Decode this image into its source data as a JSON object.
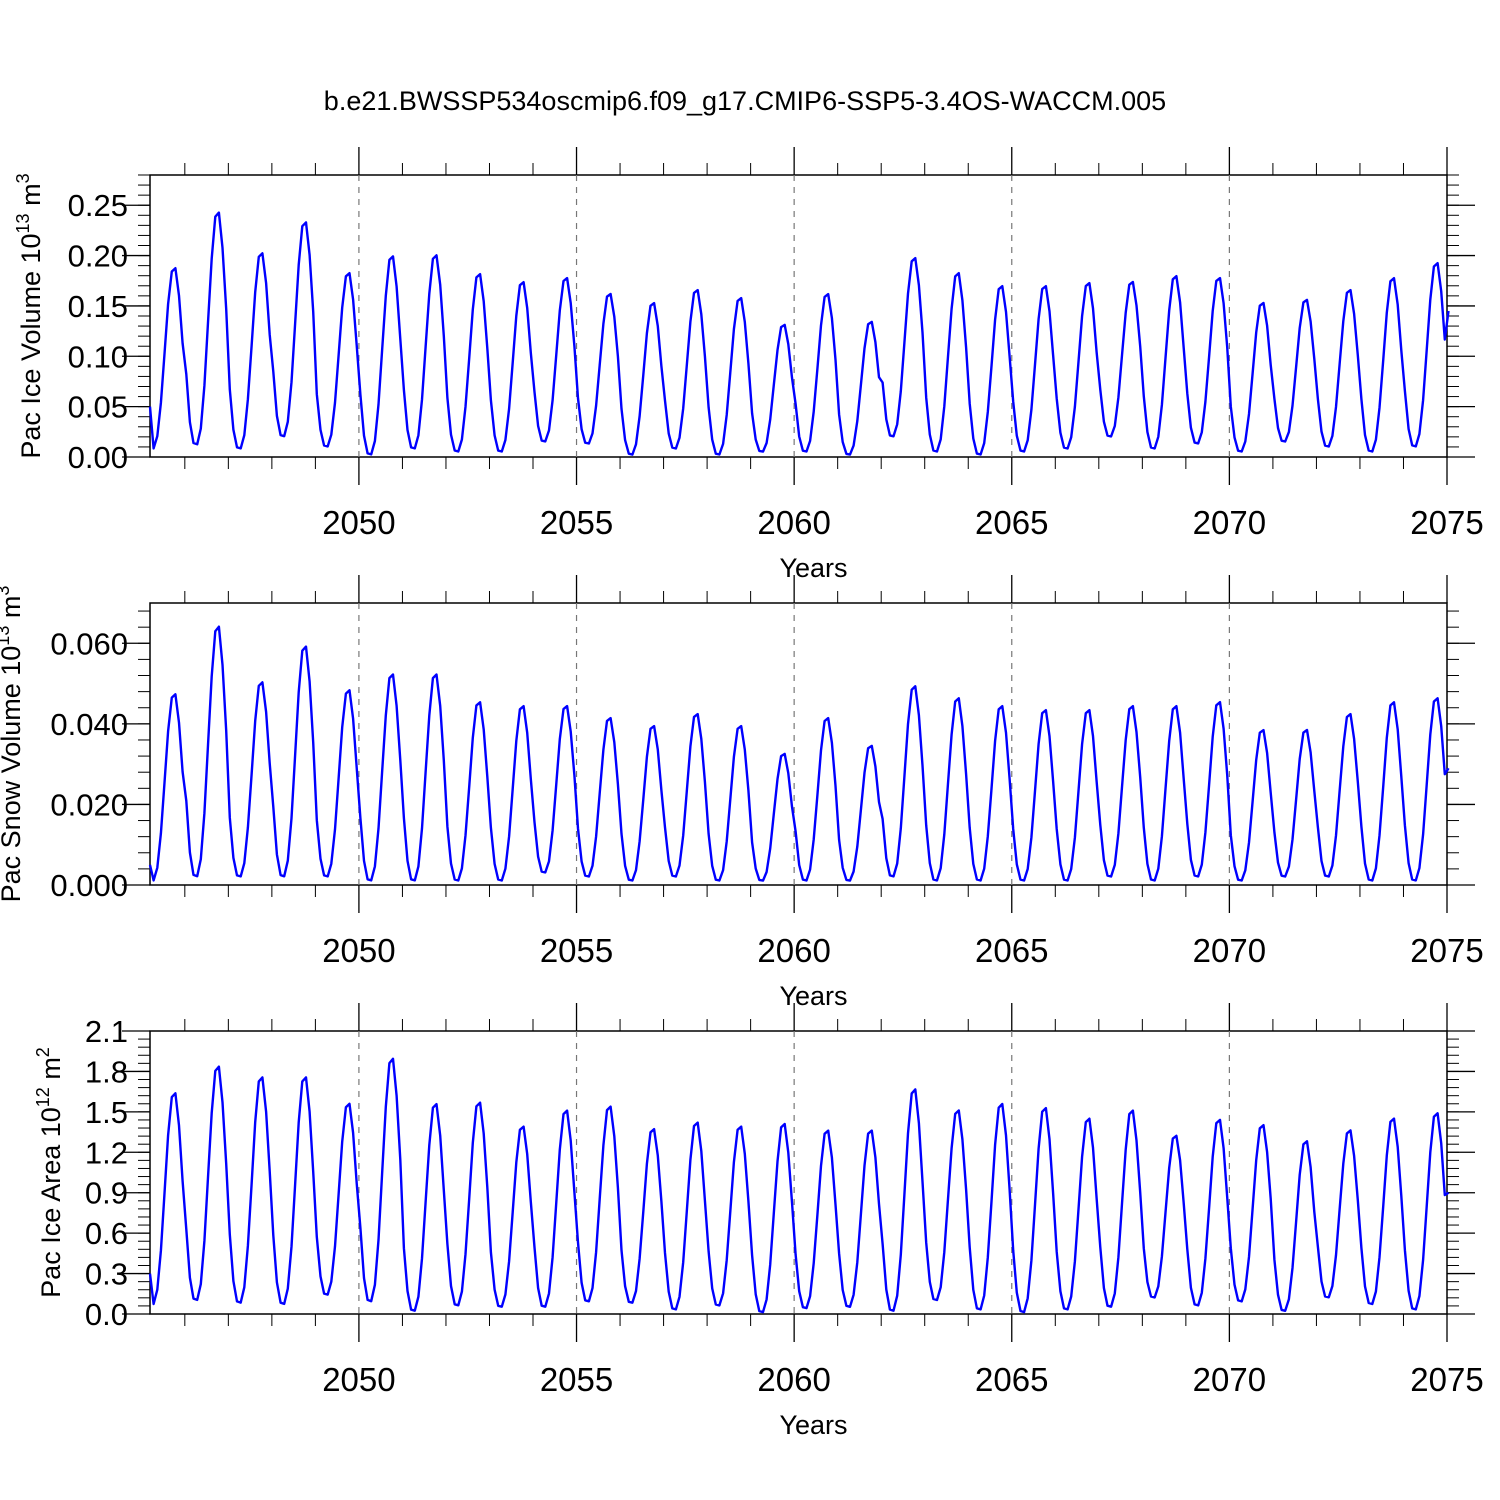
{
  "figure": {
    "title": "b.e21.BWSSP534oscmip6.f09_g17.CMIP6-SSP5-3.4OS-WACCM.005",
    "line_color": "#0000ff"
  },
  "chart_data": [
    {
      "type": "line",
      "id": "ice-volume",
      "ylabel": "Pac Ice Volume 10",
      "ylabel_exp": "13",
      "ylabel_unit": "m",
      "ylabel_unit_exp": "3",
      "xlabel": "Years",
      "xlim": [
        2045.2,
        2075.0
      ],
      "ylim": [
        0,
        0.28
      ],
      "xticks": [
        2050,
        2055,
        2060,
        2065,
        2070,
        2075
      ],
      "xtick_labels": [
        "2050",
        "2055",
        "2060",
        "2065",
        "2070",
        "2075"
      ],
      "yticks": [
        0,
        0.05,
        0.1,
        0.15,
        0.2,
        0.25
      ],
      "ytick_labels": [
        "0.00",
        "0.05",
        "0.10",
        "0.15",
        "0.20",
        "0.25"
      ],
      "grid_x": true,
      "series": [
        {
          "start_year": 2045.2,
          "peaks": [
            0.19,
            0.246,
            0.205,
            0.236,
            0.185,
            0.202,
            0.203,
            0.184,
            0.176,
            0.18,
            0.164,
            0.155,
            0.168,
            0.16,
            0.133,
            0.164,
            0.136,
            0.2,
            0.185,
            0.172,
            0.172,
            0.175,
            0.176,
            0.182,
            0.18,
            0.155,
            0.158,
            0.168,
            0.18,
            0.195
          ],
          "troughs": [
            0.008,
            0.012,
            0.008,
            0.02,
            0.01,
            0.002,
            0.008,
            0.005,
            0.005,
            0.015,
            0.013,
            0.002,
            0.008,
            0.002,
            0.005,
            0.005,
            0.002,
            0.02,
            0.005,
            0.002,
            0.005,
            0.008,
            0.02,
            0.008,
            0.013,
            0.005,
            0.015,
            0.01,
            0.005,
            0.01
          ],
          "start_value": 0.05,
          "end_value": 0.145
        }
      ]
    },
    {
      "type": "line",
      "id": "snow-volume",
      "ylabel": "Pac Snow Volume 10",
      "ylabel_exp": "13",
      "ylabel_unit": "m",
      "ylabel_unit_exp": "3",
      "xlabel": "Years",
      "xlim": [
        2045.2,
        2075.0
      ],
      "ylim": [
        0,
        0.07
      ],
      "xticks": [
        2050,
        2055,
        2060,
        2065,
        2070,
        2075
      ],
      "xtick_labels": [
        "2050",
        "2055",
        "2060",
        "2065",
        "2070",
        "2075"
      ],
      "yticks": [
        0,
        0.02,
        0.04,
        0.06
      ],
      "ytick_labels": [
        "0.000",
        "0.020",
        "0.040",
        "0.060"
      ],
      "grid_x": true,
      "series": [
        {
          "start_year": 2045.2,
          "peaks": [
            0.048,
            0.065,
            0.051,
            0.06,
            0.049,
            0.053,
            0.053,
            0.046,
            0.045,
            0.045,
            0.042,
            0.04,
            0.043,
            0.04,
            0.033,
            0.042,
            0.035,
            0.05,
            0.047,
            0.045,
            0.044,
            0.044,
            0.045,
            0.045,
            0.046,
            0.039,
            0.039,
            0.043,
            0.046,
            0.047
          ],
          "troughs": [
            0.001,
            0.002,
            0.002,
            0.002,
            0.002,
            0.001,
            0.001,
            0.001,
            0.001,
            0.003,
            0.002,
            0.001,
            0.002,
            0.001,
            0.001,
            0.001,
            0.001,
            0.002,
            0.001,
            0.001,
            0.001,
            0.001,
            0.002,
            0.001,
            0.002,
            0.001,
            0.002,
            0.002,
            0.001,
            0.001
          ],
          "start_value": 0.005,
          "end_value": 0.029
        }
      ]
    },
    {
      "type": "line",
      "id": "ice-area",
      "ylabel": "Pac Ice Area 10",
      "ylabel_exp": "12",
      "ylabel_unit": "m",
      "ylabel_unit_exp": "2",
      "xlabel": "Years",
      "xlim": [
        2045.2,
        2075.0
      ],
      "ylim": [
        0,
        2.1
      ],
      "xticks": [
        2050,
        2055,
        2060,
        2065,
        2070,
        2075
      ],
      "xtick_labels": [
        "2050",
        "2055",
        "2060",
        "2065",
        "2070",
        "2075"
      ],
      "yticks": [
        0,
        0.3,
        0.6,
        0.9,
        1.2,
        1.5,
        1.8,
        2.1
      ],
      "ytick_labels": [
        "0.0",
        "0.3",
        "0.6",
        "0.9",
        "1.2",
        "1.5",
        "1.8",
        "2.1"
      ],
      "grid_x": true,
      "series": [
        {
          "start_year": 2045.2,
          "peaks": [
            1.66,
            1.86,
            1.78,
            1.78,
            1.58,
            1.92,
            1.58,
            1.59,
            1.41,
            1.53,
            1.56,
            1.39,
            1.44,
            1.41,
            1.43,
            1.38,
            1.38,
            1.69,
            1.53,
            1.58,
            1.55,
            1.47,
            1.53,
            1.34,
            1.46,
            1.42,
            1.3,
            1.38,
            1.47,
            1.51
          ],
          "troughs": [
            0.07,
            0.1,
            0.08,
            0.07,
            0.14,
            0.09,
            0.02,
            0.06,
            0.05,
            0.05,
            0.09,
            0.08,
            0.03,
            0.06,
            0.01,
            0.04,
            0.05,
            0.02,
            0.1,
            0.03,
            0.01,
            0.03,
            0.05,
            0.12,
            0.06,
            0.09,
            0.02,
            0.12,
            0.07,
            0.03
          ],
          "start_value": 0.3,
          "end_value": 0.9
        }
      ]
    }
  ]
}
